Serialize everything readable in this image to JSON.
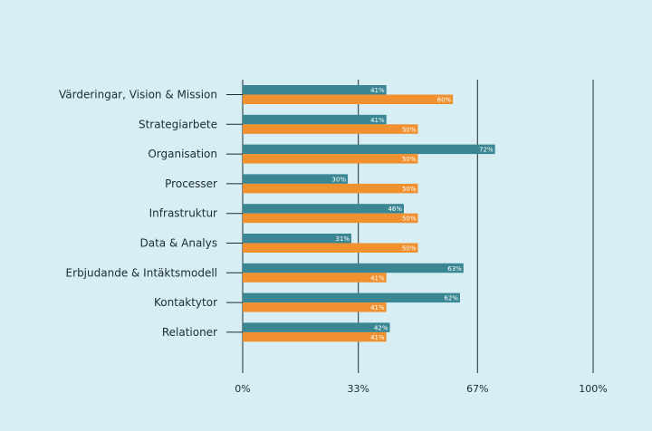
{
  "colors": {
    "background": "#d7eef5",
    "series_a": "#3a8793",
    "series_b": "#f0902f",
    "axis": "#1d2b33"
  },
  "chart_data": {
    "type": "bar",
    "orientation": "horizontal",
    "categories": [
      "Värderingar, Vision & Mission",
      "Strategiarbete",
      "Organisation",
      "Processer",
      "Infrastruktur",
      "Data & Analys",
      "Erbjudande & Intäktsmodell",
      "Kontaktytor",
      "Relationer"
    ],
    "series": [
      {
        "color": "#3a8793",
        "values": [
          41,
          41,
          72,
          30,
          46,
          31,
          63,
          62,
          42
        ]
      },
      {
        "color": "#f0902f",
        "values": [
          60,
          50,
          50,
          50,
          50,
          50,
          41,
          41,
          41
        ]
      }
    ],
    "value_labels_a": [
      "41%",
      "41%",
      "72%",
      "30%",
      "46%",
      "31%",
      "63%",
      "62%",
      "42%"
    ],
    "value_labels_b": [
      "60%",
      "50%",
      "50%",
      "50%",
      "50%",
      "50%",
      "41%",
      "41%",
      "41%"
    ],
    "x_ticks": [
      0,
      33,
      67,
      100
    ],
    "x_tick_labels": [
      "0%",
      "33%",
      "67%",
      "100%"
    ],
    "xlim": [
      0,
      100
    ],
    "grid": true,
    "title": "",
    "xlabel": "",
    "ylabel": ""
  }
}
